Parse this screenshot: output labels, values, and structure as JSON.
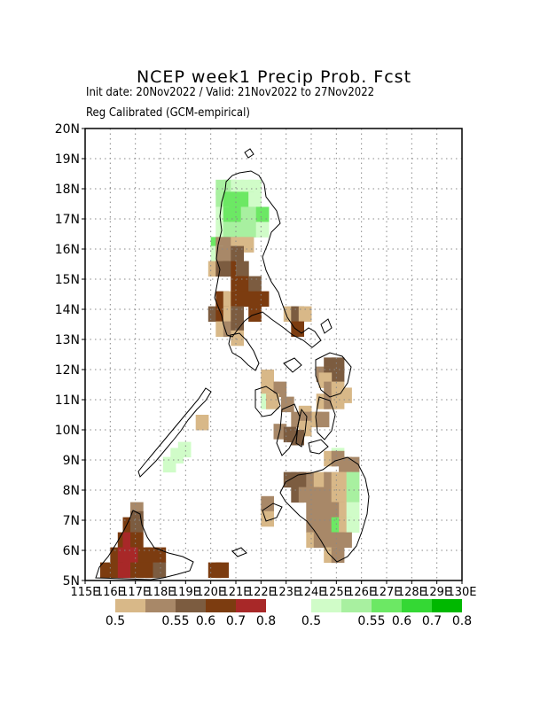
{
  "header": {
    "title": "NCEP week1 Precip Prob. Fcst",
    "init_line": "Init date: 20Nov2022 / Valid: 21Nov2022 to 27Nov2022",
    "method_line": "Reg Calibrated (GCM-empirical)"
  },
  "axes": {
    "lat_labels": [
      "5N",
      "6N",
      "7N",
      "8N",
      "9N",
      "10N",
      "11N",
      "12N",
      "13N",
      "14N",
      "15N",
      "16N",
      "17N",
      "18N",
      "19N",
      "20N"
    ],
    "lon_labels": [
      "115E",
      "116E",
      "117E",
      "118E",
      "119E",
      "120E",
      "121E",
      "122E",
      "123E",
      "124E",
      "125E",
      "126E",
      "127E",
      "128E",
      "129E",
      "130E"
    ],
    "lat_range": [
      5,
      20
    ],
    "lon_range": [
      115,
      130
    ],
    "grid": true
  },
  "legend": {
    "dry": {
      "colors": [
        "#d8b888",
        "#a88868",
        "#7c5c40",
        "#7c3c10",
        "#a82828"
      ],
      "labels": [
        "0.5",
        "0.55",
        "0.6",
        "0.7",
        "0.8"
      ]
    },
    "wet": {
      "colors": [
        "#d0fcc8",
        "#a8f0a0",
        "#6ce864",
        "#34d834",
        "#00b800"
      ],
      "labels": [
        "0.5",
        "0.55",
        "0.6",
        "0.7",
        "0.8"
      ]
    }
  },
  "chart_data": {
    "type": "heatmap",
    "description_key": "cells are [lon_west, lat_south, category]; category D1..D5 = below-normal prob bins, W1..W5 = above-normal prob bins",
    "cell_size_deg": 0.5,
    "cells": [
      [
        120.2,
        17.8,
        "W2"
      ],
      [
        120.5,
        17.8,
        "W2"
      ],
      [
        120.8,
        17.8,
        "W1"
      ],
      [
        121.2,
        17.8,
        "W1"
      ],
      [
        121.5,
        17.8,
        "W1"
      ],
      [
        120.2,
        17.4,
        "W2"
      ],
      [
        120.5,
        17.4,
        "W3"
      ],
      [
        120.8,
        17.4,
        "W3"
      ],
      [
        121.2,
        17.4,
        "W3"
      ],
      [
        121.5,
        17.4,
        "W1"
      ],
      [
        120.2,
        16.9,
        "W1"
      ],
      [
        120.5,
        16.9,
        "W3"
      ],
      [
        120.8,
        16.9,
        "W3"
      ],
      [
        121.2,
        16.9,
        "W2"
      ],
      [
        121.5,
        16.9,
        "W2"
      ],
      [
        121.8,
        16.9,
        "W3"
      ],
      [
        120.2,
        16.4,
        "W1"
      ],
      [
        120.5,
        16.4,
        "W2"
      ],
      [
        120.8,
        16.4,
        "W2"
      ],
      [
        121.2,
        16.4,
        "W2"
      ],
      [
        121.5,
        16.4,
        "W2"
      ],
      [
        121.8,
        16.4,
        "W1"
      ],
      [
        120.0,
        15.9,
        "W3"
      ],
      [
        120.2,
        15.9,
        "D2"
      ],
      [
        120.5,
        15.9,
        "D2"
      ],
      [
        120.8,
        15.9,
        "D1"
      ],
      [
        121.2,
        15.9,
        "D1"
      ],
      [
        120.0,
        15.6,
        "W1"
      ],
      [
        120.2,
        15.6,
        "D2"
      ],
      [
        120.5,
        15.6,
        "D2"
      ],
      [
        120.8,
        15.6,
        "D3"
      ],
      [
        119.9,
        15.1,
        "D1"
      ],
      [
        120.2,
        15.1,
        "D3"
      ],
      [
        120.5,
        15.1,
        "D3"
      ],
      [
        120.8,
        15.1,
        "D4"
      ],
      [
        121.0,
        15.1,
        "D3"
      ],
      [
        120.8,
        14.6,
        "D4"
      ],
      [
        121.0,
        14.6,
        "D4"
      ],
      [
        121.5,
        14.6,
        "D3"
      ],
      [
        120.2,
        14.1,
        "D4"
      ],
      [
        120.5,
        14.1,
        "D1"
      ],
      [
        120.8,
        14.1,
        "D4"
      ],
      [
        121.0,
        14.1,
        "D4"
      ],
      [
        121.3,
        14.1,
        "D4"
      ],
      [
        121.8,
        14.1,
        "D4"
      ],
      [
        119.9,
        13.6,
        "D3"
      ],
      [
        120.2,
        13.6,
        "D4"
      ],
      [
        120.5,
        13.6,
        "D1"
      ],
      [
        120.8,
        13.6,
        "D3"
      ],
      [
        121.5,
        13.6,
        "D4"
      ],
      [
        122.9,
        13.6,
        "D1"
      ],
      [
        123.2,
        13.6,
        "D3"
      ],
      [
        123.5,
        13.6,
        "D1"
      ],
      [
        120.2,
        13.1,
        "D1"
      ],
      [
        120.5,
        13.1,
        "D2"
      ],
      [
        120.8,
        13.1,
        "D3"
      ],
      [
        123.2,
        13.1,
        "D4"
      ],
      [
        120.8,
        12.8,
        "D1"
      ],
      [
        124.5,
        11.9,
        "D3"
      ],
      [
        124.8,
        11.9,
        "D3"
      ],
      [
        124.2,
        11.6,
        "D2"
      ],
      [
        124.5,
        11.6,
        "D3"
      ],
      [
        124.8,
        11.6,
        "D3"
      ],
      [
        124.3,
        11.4,
        "D1"
      ],
      [
        122.0,
        11.5,
        "D1"
      ],
      [
        122.0,
        11.1,
        "D1"
      ],
      [
        122.2,
        11.1,
        "D1"
      ],
      [
        122.5,
        11.1,
        "D2"
      ],
      [
        122.0,
        10.7,
        "W1"
      ],
      [
        122.2,
        10.7,
        "D1"
      ],
      [
        124.5,
        11.1,
        "D2"
      ],
      [
        124.8,
        11.1,
        "D1"
      ],
      [
        125.1,
        10.9,
        "D1"
      ],
      [
        124.2,
        10.7,
        "D1"
      ],
      [
        124.5,
        10.7,
        "D2"
      ],
      [
        124.8,
        10.7,
        "D1"
      ],
      [
        122.8,
        10.6,
        "D2"
      ],
      [
        123.5,
        10.3,
        "D1"
      ],
      [
        123.9,
        10.1,
        "D1"
      ],
      [
        124.2,
        10.1,
        "D2"
      ],
      [
        123.2,
        10.1,
        "D2"
      ],
      [
        123.5,
        10.1,
        "D2"
      ],
      [
        122.5,
        9.7,
        "D2"
      ],
      [
        123.5,
        9.8,
        "D1"
      ],
      [
        122.9,
        9.6,
        "D3"
      ],
      [
        123.2,
        9.5,
        "D3"
      ],
      [
        124.8,
        8.9,
        "W1"
      ],
      [
        124.5,
        8.8,
        "D1"
      ],
      [
        124.8,
        8.8,
        "D2"
      ],
      [
        125.1,
        8.6,
        "D2"
      ],
      [
        125.4,
        8.6,
        "D2"
      ],
      [
        125.1,
        8.6,
        "D2"
      ],
      [
        122.9,
        8.1,
        "D3"
      ],
      [
        123.2,
        8.1,
        "D3"
      ],
      [
        123.5,
        8.1,
        "D3"
      ],
      [
        123.8,
        8.1,
        "D2"
      ],
      [
        124.1,
        8.1,
        "D1"
      ],
      [
        124.5,
        8.1,
        "D2"
      ],
      [
        124.8,
        8.1,
        "D1"
      ],
      [
        125.1,
        8.1,
        "D1"
      ],
      [
        125.4,
        8.1,
        "W2"
      ],
      [
        123.2,
        7.6,
        "D3"
      ],
      [
        123.5,
        7.6,
        "D2"
      ],
      [
        123.8,
        7.6,
        "D2"
      ],
      [
        124.1,
        7.6,
        "D2"
      ],
      [
        124.5,
        7.6,
        "D2"
      ],
      [
        124.8,
        7.6,
        "D1"
      ],
      [
        125.1,
        7.6,
        "D1"
      ],
      [
        125.4,
        7.6,
        "W2"
      ],
      [
        122.0,
        7.3,
        "D2"
      ],
      [
        123.8,
        7.1,
        "D2"
      ],
      [
        124.1,
        7.1,
        "D2"
      ],
      [
        124.5,
        7.1,
        "D2"
      ],
      [
        124.8,
        7.1,
        "D2"
      ],
      [
        125.1,
        7.1,
        "D1"
      ],
      [
        125.4,
        7.1,
        "W1"
      ],
      [
        122.0,
        6.8,
        "D1"
      ],
      [
        123.8,
        6.6,
        "D2"
      ],
      [
        124.1,
        6.6,
        "D2"
      ],
      [
        124.5,
        6.6,
        "D2"
      ],
      [
        124.8,
        6.6,
        "W3"
      ],
      [
        125.1,
        6.6,
        "D1"
      ],
      [
        125.4,
        6.6,
        "W1"
      ],
      [
        123.8,
        6.1,
        "D1"
      ],
      [
        124.1,
        6.1,
        "D2"
      ],
      [
        124.5,
        6.1,
        "D2"
      ],
      [
        124.8,
        6.1,
        "D2"
      ],
      [
        125.1,
        6.1,
        "D2"
      ],
      [
        124.5,
        5.6,
        "D1"
      ],
      [
        124.8,
        5.6,
        "D2"
      ],
      [
        116.8,
        7.1,
        "D2"
      ],
      [
        116.8,
        6.8,
        "D3"
      ],
      [
        116.5,
        6.6,
        "D4"
      ],
      [
        116.8,
        6.6,
        "D3"
      ],
      [
        116.3,
        6.1,
        "D4"
      ],
      [
        116.5,
        6.1,
        "D5"
      ],
      [
        116.8,
        6.1,
        "D4"
      ],
      [
        116.0,
        5.6,
        "D4"
      ],
      [
        116.3,
        5.6,
        "D5"
      ],
      [
        116.5,
        5.6,
        "D5"
      ],
      [
        116.8,
        5.6,
        "D5"
      ],
      [
        117.1,
        5.6,
        "D4"
      ],
      [
        117.4,
        5.6,
        "D4"
      ],
      [
        117.7,
        5.6,
        "D4"
      ],
      [
        115.6,
        5.1,
        "D4"
      ],
      [
        116.0,
        5.1,
        "D4"
      ],
      [
        116.3,
        5.1,
        "D5"
      ],
      [
        116.5,
        5.1,
        "D5"
      ],
      [
        116.8,
        5.1,
        "D4"
      ],
      [
        117.1,
        5.1,
        "D4"
      ],
      [
        117.4,
        5.1,
        "D4"
      ],
      [
        117.7,
        5.1,
        "D3"
      ],
      [
        119.9,
        5.1,
        "D4"
      ],
      [
        120.2,
        5.1,
        "D4"
      ],
      [
        119.4,
        10.0,
        "D1"
      ],
      [
        118.1,
        8.6,
        "W1"
      ],
      [
        118.4,
        8.9,
        "W1"
      ],
      [
        118.7,
        9.1,
        "W1"
      ]
    ]
  }
}
